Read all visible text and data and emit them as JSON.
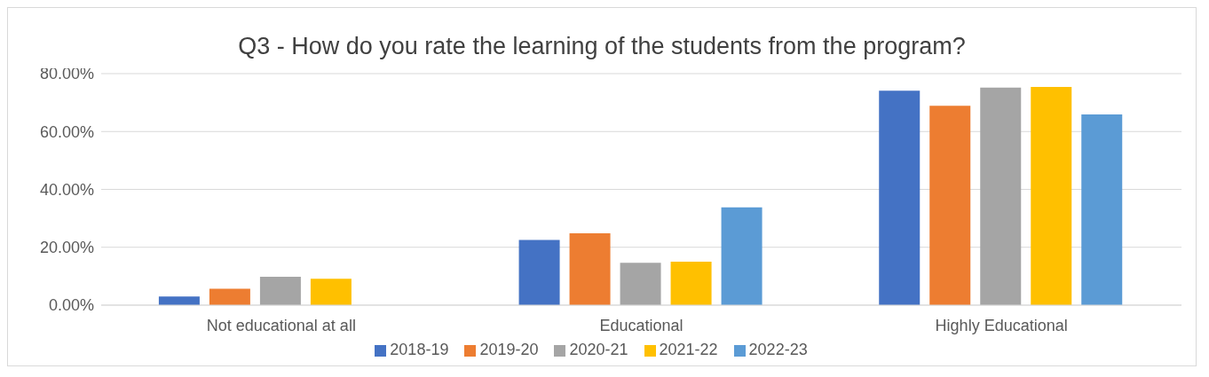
{
  "chart_data": {
    "type": "bar",
    "title": "Q3 - How do you rate the learning of the students from the program?",
    "categories": [
      "Not educational at all",
      "Educational",
      "Highly Educational"
    ],
    "series": [
      {
        "name": "2018-19",
        "color": "#4472c4",
        "values": [
          3.0,
          22.5,
          74.1
        ]
      },
      {
        "name": "2019-20",
        "color": "#ed7d31",
        "values": [
          5.7,
          24.8,
          68.9
        ]
      },
      {
        "name": "2020-21",
        "color": "#a5a5a5",
        "values": [
          9.8,
          14.6,
          75.2
        ]
      },
      {
        "name": "2021-22",
        "color": "#ffc000",
        "values": [
          9.1,
          15.0,
          75.4
        ]
      },
      {
        "name": "2022-23",
        "color": "#5b9bd5",
        "values": [
          null,
          33.8,
          65.9
        ]
      }
    ],
    "ylim": [
      0,
      80
    ],
    "yticks": [
      {
        "value": 0,
        "label": "0.00%"
      },
      {
        "value": 20,
        "label": "20.00%"
      },
      {
        "value": 40,
        "label": "40.00%"
      },
      {
        "value": 60,
        "label": "60.00%"
      },
      {
        "value": 80,
        "label": "80.00%"
      }
    ],
    "grid": "y",
    "legend": "bottom"
  }
}
